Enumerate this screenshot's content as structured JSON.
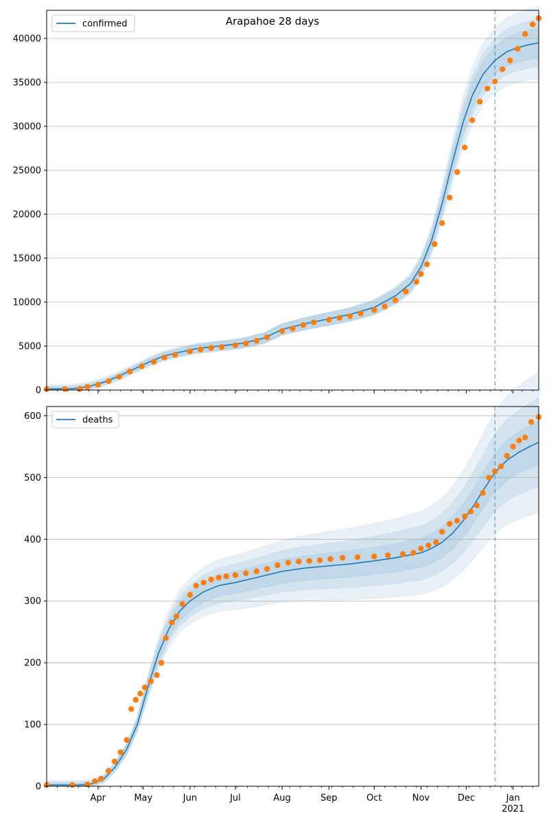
{
  "figure": {
    "title": "Arapahoe 28 days"
  },
  "colors": {
    "model_line": "#1f77b4",
    "band": "#1f77b4",
    "observed": "#ff7f0e",
    "grid": "#b0b0b0",
    "cutoff_line": "#1f77b4"
  },
  "chart_data": [
    {
      "type": "line",
      "panel": "top",
      "legend": [
        "confirmed"
      ],
      "legend_position": "top-left",
      "grid": "horizontal",
      "x_axis": {
        "type": "date",
        "range": [
          "2020-02-27",
          "2021-01-18"
        ],
        "tick_labels": [
          {
            "date": "2020-04-01",
            "label": "Apr"
          },
          {
            "date": "2020-05-01",
            "label": "May"
          },
          {
            "date": "2020-06-01",
            "label": "Jun"
          },
          {
            "date": "2020-07-01",
            "label": "Jul"
          },
          {
            "date": "2020-08-01",
            "label": "Aug"
          },
          {
            "date": "2020-09-01",
            "label": "Sep"
          },
          {
            "date": "2020-10-01",
            "label": "Oct"
          },
          {
            "date": "2020-11-01",
            "label": "Nov"
          },
          {
            "date": "2020-12-01",
            "label": "Dec"
          },
          {
            "date": "2021-01-01",
            "label": "Jan",
            "sublabel": "2021"
          }
        ],
        "tick_labels_visible": false
      },
      "y_axis": {
        "range": [
          0,
          43200
        ],
        "ticks": [
          0,
          5000,
          10000,
          15000,
          20000,
          25000,
          30000,
          35000,
          40000
        ]
      },
      "cutoff_date": "2020-12-20",
      "model_curve": {
        "name": "confirmed",
        "x": [
          "2020-02-27",
          "2020-03-15",
          "2020-03-25",
          "2020-04-05",
          "2020-04-15",
          "2020-04-25",
          "2020-05-05",
          "2020-05-15",
          "2020-05-25",
          "2020-06-05",
          "2020-06-20",
          "2020-07-05",
          "2020-07-20",
          "2020-08-01",
          "2020-08-15",
          "2020-09-01",
          "2020-09-15",
          "2020-10-01",
          "2020-10-15",
          "2020-10-25",
          "2020-11-01",
          "2020-11-08",
          "2020-11-15",
          "2020-11-22",
          "2020-11-29",
          "2020-12-05",
          "2020-12-12",
          "2020-12-20",
          "2020-12-28",
          "2021-01-05",
          "2021-01-12",
          "2021-01-18"
        ],
        "y": [
          100,
          150,
          350,
          900,
          1600,
          2400,
          3200,
          3900,
          4300,
          4700,
          5000,
          5300,
          5900,
          6900,
          7500,
          8100,
          8600,
          9400,
          10700,
          12100,
          14000,
          17000,
          21200,
          26000,
          30500,
          33500,
          35900,
          37500,
          38500,
          39000,
          39300,
          39500
        ],
        "band_scale": [
          0.03,
          0.06,
          0.1
        ]
      },
      "observed": {
        "x": [
          "2020-02-27",
          "2020-03-10",
          "2020-03-20",
          "2020-03-25",
          "2020-04-01",
          "2020-04-08",
          "2020-04-15",
          "2020-04-22",
          "2020-04-30",
          "2020-05-08",
          "2020-05-15",
          "2020-05-22",
          "2020-06-01",
          "2020-06-08",
          "2020-06-15",
          "2020-06-22",
          "2020-07-01",
          "2020-07-08",
          "2020-07-15",
          "2020-07-22",
          "2020-08-01",
          "2020-08-08",
          "2020-08-15",
          "2020-08-22",
          "2020-09-01",
          "2020-09-08",
          "2020-09-15",
          "2020-09-22",
          "2020-10-01",
          "2020-10-08",
          "2020-10-15",
          "2020-10-22",
          "2020-10-29",
          "2020-11-01",
          "2020-11-05",
          "2020-11-10",
          "2020-11-15",
          "2020-11-20",
          "2020-11-25",
          "2020-11-30",
          "2020-12-05",
          "2020-12-10",
          "2020-12-15",
          "2020-12-20",
          "2020-12-25",
          "2020-12-30",
          "2021-01-04",
          "2021-01-09",
          "2021-01-14",
          "2021-01-18"
        ],
        "y": [
          100,
          100,
          120,
          350,
          600,
          1000,
          1500,
          2100,
          2700,
          3200,
          3700,
          4000,
          4400,
          4600,
          4800,
          4900,
          5100,
          5300,
          5600,
          6000,
          6700,
          7000,
          7400,
          7700,
          8000,
          8200,
          8400,
          8700,
          9100,
          9500,
          10200,
          11200,
          12300,
          13200,
          14300,
          16600,
          19000,
          21900,
          24800,
          27600,
          30700,
          32800,
          34300,
          35100,
          36500,
          37500,
          38800,
          40500,
          41600,
          42300
        ]
      }
    },
    {
      "type": "line",
      "panel": "bottom",
      "legend": [
        "deaths"
      ],
      "legend_position": "top-left",
      "grid": "horizontal",
      "x_axis": {
        "type": "date",
        "range": [
          "2020-02-27",
          "2021-01-18"
        ],
        "tick_labels": [
          {
            "date": "2020-04-01",
            "label": "Apr"
          },
          {
            "date": "2020-05-01",
            "label": "May"
          },
          {
            "date": "2020-06-01",
            "label": "Jun"
          },
          {
            "date": "2020-07-01",
            "label": "Jul"
          },
          {
            "date": "2020-08-01",
            "label": "Aug"
          },
          {
            "date": "2020-09-01",
            "label": "Sep"
          },
          {
            "date": "2020-10-01",
            "label": "Oct"
          },
          {
            "date": "2020-11-01",
            "label": "Nov"
          },
          {
            "date": "2020-12-01",
            "label": "Dec"
          },
          {
            "date": "2021-01-01",
            "label": "Jan",
            "sublabel": "2021"
          }
        ],
        "tick_labels_visible": true
      },
      "y_axis": {
        "range": [
          0,
          615
        ],
        "ticks": [
          0,
          100,
          200,
          300,
          400,
          500,
          600
        ]
      },
      "cutoff_date": "2020-12-20",
      "model_curve": {
        "name": "deaths",
        "x": [
          "2020-02-27",
          "2020-03-20",
          "2020-03-28",
          "2020-04-05",
          "2020-04-12",
          "2020-04-20",
          "2020-04-27",
          "2020-05-04",
          "2020-05-11",
          "2020-05-18",
          "2020-05-25",
          "2020-06-01",
          "2020-06-10",
          "2020-06-20",
          "2020-07-01",
          "2020-07-15",
          "2020-08-01",
          "2020-08-15",
          "2020-09-01",
          "2020-09-15",
          "2020-10-01",
          "2020-10-15",
          "2020-11-01",
          "2020-11-08",
          "2020-11-15",
          "2020-11-22",
          "2020-11-29",
          "2020-12-06",
          "2020-12-13",
          "2020-12-20",
          "2020-12-28",
          "2021-01-05",
          "2021-01-12",
          "2021-01-18"
        ],
        "y": [
          2,
          2,
          4,
          12,
          30,
          60,
          100,
          160,
          215,
          255,
          283,
          300,
          315,
          325,
          330,
          338,
          348,
          353,
          357,
          360,
          365,
          370,
          378,
          385,
          395,
          410,
          430,
          455,
          482,
          508,
          528,
          541,
          550,
          557
        ],
        "band_scale": [
          0.05,
          0.12,
          0.2
        ]
      },
      "observed": {
        "x": [
          "2020-02-27",
          "2020-03-15",
          "2020-03-25",
          "2020-03-30",
          "2020-04-03",
          "2020-04-08",
          "2020-04-12",
          "2020-04-16",
          "2020-04-20",
          "2020-04-23",
          "2020-04-26",
          "2020-04-29",
          "2020-05-02",
          "2020-05-06",
          "2020-05-10",
          "2020-05-13",
          "2020-05-16",
          "2020-05-20",
          "2020-05-23",
          "2020-05-27",
          "2020-06-01",
          "2020-06-05",
          "2020-06-10",
          "2020-06-15",
          "2020-06-20",
          "2020-06-25",
          "2020-07-01",
          "2020-07-08",
          "2020-07-15",
          "2020-07-22",
          "2020-07-29",
          "2020-08-05",
          "2020-08-12",
          "2020-08-19",
          "2020-08-26",
          "2020-09-02",
          "2020-09-10",
          "2020-09-20",
          "2020-10-01",
          "2020-10-10",
          "2020-10-20",
          "2020-10-27",
          "2020-11-01",
          "2020-11-06",
          "2020-11-11",
          "2020-11-15",
          "2020-11-20",
          "2020-11-25",
          "2020-11-30",
          "2020-12-04",
          "2020-12-08",
          "2020-12-12",
          "2020-12-16",
          "2020-12-20",
          "2020-12-24",
          "2020-12-28",
          "2021-01-01",
          "2021-01-05",
          "2021-01-09",
          "2021-01-13",
          "2021-01-18"
        ],
        "y": [
          2,
          2,
          3,
          8,
          12,
          25,
          40,
          55,
          75,
          125,
          140,
          150,
          160,
          170,
          180,
          200,
          240,
          265,
          275,
          295,
          310,
          325,
          330,
          335,
          338,
          340,
          342,
          345,
          348,
          352,
          358,
          362,
          364,
          365,
          366,
          368,
          370,
          371,
          372,
          374,
          376,
          378,
          385,
          390,
          395,
          412,
          425,
          430,
          437,
          445,
          455,
          475,
          500,
          510,
          518,
          535,
          550,
          560,
          565,
          590,
          598
        ]
      }
    }
  ]
}
